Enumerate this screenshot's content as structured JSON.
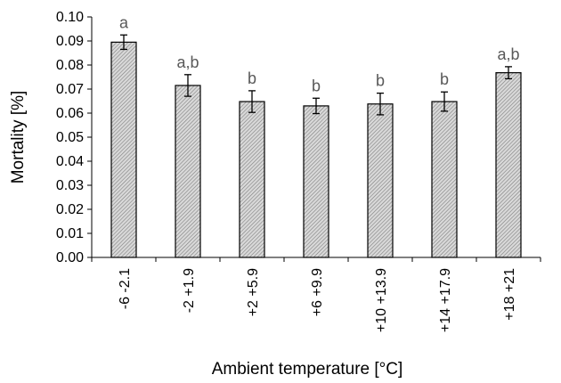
{
  "chart_data": {
    "type": "bar",
    "categories": [
      "-6  -2.1",
      "-2  +1.9",
      "+2  +5.9",
      "+6  +9.9",
      "+10  +13.9",
      "+14  +17.9",
      "+18  +21"
    ],
    "values": [
      0.0895,
      0.0715,
      0.0648,
      0.063,
      0.0638,
      0.0648,
      0.0768
    ],
    "error": [
      0.003,
      0.0045,
      0.0045,
      0.0032,
      0.0045,
      0.004,
      0.0025
    ],
    "annotations": [
      "a",
      "a,b",
      "b",
      "b",
      "b",
      "b",
      "a,b"
    ],
    "title": "",
    "xlabel": "Ambient temperature [°C]",
    "ylabel": "Mortality [%]",
    "ylim": [
      0,
      0.1
    ],
    "yticks": [
      "0.00",
      "0.01",
      "0.02",
      "0.03",
      "0.04",
      "0.05",
      "0.06",
      "0.07",
      "0.08",
      "0.09",
      "0.10"
    ],
    "grid": false,
    "legend": "none",
    "bar_fill": "#d9d9d9",
    "bar_hatch": "#7f7f7f",
    "bar_edge": "#000000",
    "annotation_color": "#595959"
  }
}
